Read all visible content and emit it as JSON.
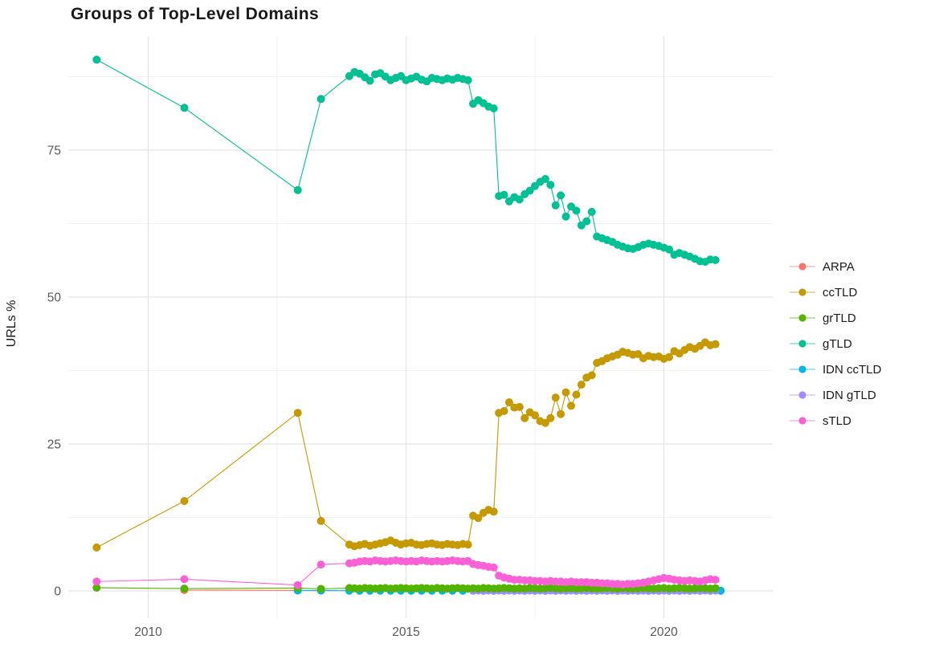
{
  "title": "Groups of Top-Level Domains",
  "legend": {
    "items": [
      {
        "label": "ARPA",
        "color": "#F8766D"
      },
      {
        "label": "ccTLD",
        "color": "#C49A00"
      },
      {
        "label": "grTLD",
        "color": "#53B400"
      },
      {
        "label": "gTLD",
        "color": "#00C094"
      },
      {
        "label": "IDN ccTLD",
        "color": "#00B6EB"
      },
      {
        "label": "IDN gTLD",
        "color": "#A58AFF"
      },
      {
        "label": "sTLD",
        "color": "#FB61D7"
      }
    ]
  },
  "chart_data": {
    "type": "line",
    "title": "Groups of Top-Level Domains",
    "xlabel": "",
    "ylabel": "URLs %",
    "xlim": [
      2008.45,
      2022.11
    ],
    "ylim": [
      -4.64,
      94.4
    ],
    "x_ticks": [
      2010,
      2015,
      2020
    ],
    "x_tick_labels": [
      "2010",
      "2015",
      "2020"
    ],
    "x_minor_ticks": [
      2012.5,
      2017.5
    ],
    "y_ticks": [
      0,
      25,
      50,
      75
    ],
    "y_tick_labels": [
      "0",
      "25",
      "50",
      "75"
    ],
    "y_minor_ticks": [
      12.5,
      37.5,
      62.5,
      87.5
    ],
    "grid": true,
    "legend_position": "right",
    "dense_x": {
      "start": 2013.9,
      "step": 0.1
    },
    "series": [
      {
        "name": "ARPA",
        "color": "#F8766D",
        "early": [
          [
            2010.7,
            0.15
          ],
          [
            2012.9,
            0.08
          ]
        ]
      },
      {
        "name": "IDN ccTLD",
        "color": "#00B6EB",
        "early": [
          [
            2012.9,
            0.07
          ],
          [
            2013.35,
            0.06
          ]
        ],
        "run": {
          "start": 2013.9,
          "step": 0.2,
          "y": 0.05,
          "n": 37
        }
      },
      {
        "name": "IDN gTLD",
        "color": "#A58AFF",
        "run": {
          "start": 2016.3,
          "step": 0.1,
          "y": 0.07,
          "n": 48
        }
      },
      {
        "name": "ccTLD",
        "color": "#C49A00",
        "early": [
          [
            2009.0,
            7.4
          ],
          [
            2010.7,
            15.3
          ],
          [
            2012.9,
            30.3
          ],
          [
            2013.35,
            11.9
          ]
        ],
        "dense": [
          7.9,
          7.6,
          7.8,
          8.0,
          7.7,
          7.9,
          8.1,
          8.3,
          8.6,
          8.2,
          7.9,
          8.1,
          8.2,
          7.9,
          7.8,
          8.0,
          8.1,
          7.9,
          7.8,
          8.0,
          7.9,
          7.8,
          8.0,
          7.9,
          12.8,
          12.4,
          13.3,
          13.8,
          13.5,
          30.3,
          30.6,
          32.1,
          31.2,
          31.3,
          29.4,
          30.4,
          29.9,
          28.9,
          28.6,
          29.4,
          32.9,
          30.1,
          33.8,
          31.5,
          33.4,
          35.1,
          36.3,
          36.7,
          38.8,
          39.1,
          39.6,
          39.9,
          40.2,
          40.7,
          40.5,
          40.2,
          40.3,
          39.6,
          40.0,
          39.8,
          39.9,
          39.5,
          39.8,
          40.8,
          40.4,
          41.0,
          41.5,
          41.2,
          41.7,
          42.3,
          41.8,
          42.0
        ]
      },
      {
        "name": "gTLD",
        "color": "#00C094",
        "early": [
          [
            2009.0,
            90.4
          ],
          [
            2010.7,
            82.2
          ],
          [
            2012.9,
            68.2
          ],
          [
            2013.35,
            83.7
          ]
        ],
        "dense": [
          87.6,
          88.3,
          88.0,
          87.4,
          86.8,
          87.9,
          88.1,
          87.5,
          86.9,
          87.3,
          87.6,
          86.9,
          87.2,
          87.5,
          87.0,
          86.7,
          87.3,
          87.1,
          86.9,
          87.2,
          87.0,
          87.3,
          87.1,
          86.9,
          82.9,
          83.5,
          83.0,
          82.4,
          82.1,
          67.2,
          67.4,
          66.3,
          67.0,
          66.6,
          67.5,
          68.1,
          68.9,
          69.6,
          70.1,
          69.1,
          65.6,
          67.3,
          63.7,
          65.4,
          64.7,
          62.2,
          62.9,
          64.5,
          60.3,
          60.0,
          59.7,
          59.4,
          58.9,
          58.6,
          58.3,
          58.2,
          58.5,
          58.9,
          59.1,
          58.9,
          58.7,
          58.4,
          58.1,
          57.2,
          57.5,
          57.2,
          56.9,
          56.5,
          56.1,
          56.0,
          56.4,
          56.3
        ]
      },
      {
        "name": "grTLD",
        "color": "#53B400",
        "early": [
          [
            2009.0,
            0.55
          ],
          [
            2010.7,
            0.4
          ],
          [
            2012.9,
            0.5
          ],
          [
            2013.35,
            0.35
          ]
        ],
        "dense": [
          0.5,
          0.45,
          0.4,
          0.5,
          0.45,
          0.4,
          0.45,
          0.5,
          0.4,
          0.45,
          0.5,
          0.45,
          0.4,
          0.45,
          0.5,
          0.45,
          0.4,
          0.5,
          0.45,
          0.4,
          0.45,
          0.5,
          0.45,
          0.4,
          0.45,
          0.4,
          0.5,
          0.45,
          0.4,
          0.45,
          0.5,
          0.45,
          0.4,
          0.45,
          0.4,
          0.5,
          0.45,
          0.4,
          0.45,
          0.5,
          0.45,
          0.4,
          0.45,
          0.5,
          0.4,
          0.45,
          0.5,
          0.45,
          0.4,
          0.45,
          0.5,
          0.45,
          0.4,
          0.5,
          0.45,
          0.4,
          0.45,
          0.5,
          0.45,
          0.4,
          0.45,
          0.5,
          0.4,
          0.45,
          0.5,
          0.45,
          0.4,
          0.45,
          0.5,
          0.45,
          0.4,
          0.45
        ]
      },
      {
        "name": "sTLD",
        "color": "#FB61D7",
        "early": [
          [
            2009.0,
            1.6
          ],
          [
            2010.7,
            2.0
          ],
          [
            2012.9,
            1.0
          ],
          [
            2013.35,
            4.5
          ]
        ],
        "dense": [
          4.7,
          4.8,
          5.0,
          5.1,
          5.0,
          5.2,
          5.1,
          5.0,
          5.1,
          5.2,
          5.1,
          5.0,
          5.1,
          5.0,
          5.2,
          5.1,
          5.0,
          5.1,
          5.0,
          5.1,
          5.2,
          5.1,
          5.0,
          5.1,
          4.6,
          4.4,
          4.3,
          4.1,
          4.0,
          2.6,
          2.3,
          2.1,
          1.9,
          1.9,
          1.8,
          1.8,
          1.7,
          1.7,
          1.6,
          1.7,
          1.6,
          1.6,
          1.5,
          1.6,
          1.5,
          1.5,
          1.5,
          1.4,
          1.4,
          1.3,
          1.3,
          1.2,
          1.2,
          1.1,
          1.2,
          1.2,
          1.3,
          1.4,
          1.6,
          1.8,
          2.0,
          2.2,
          2.1,
          1.9,
          1.8,
          1.7,
          1.8,
          1.7,
          1.6,
          1.8,
          2.0,
          1.9
        ]
      }
    ]
  }
}
